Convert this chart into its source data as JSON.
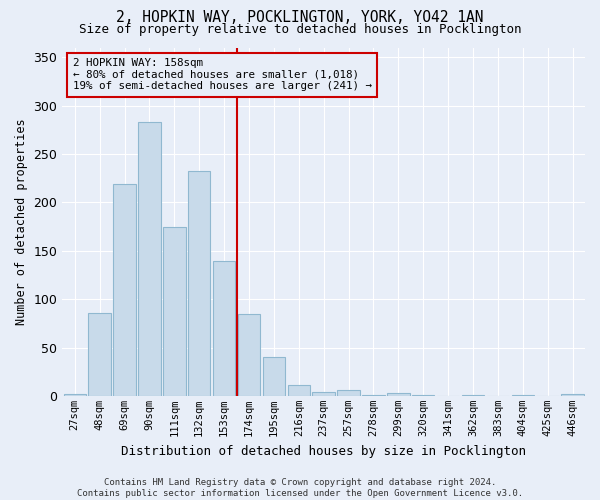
{
  "title": "2, HOPKIN WAY, POCKLINGTON, YORK, YO42 1AN",
  "subtitle": "Size of property relative to detached houses in Pocklington",
  "xlabel": "Distribution of detached houses by size in Pocklington",
  "ylabel": "Number of detached properties",
  "bar_color": "#c8daea",
  "bar_edge_color": "#90b8d0",
  "background_color": "#e8eef8",
  "grid_color": "#ffffff",
  "categories": [
    "27sqm",
    "48sqm",
    "69sqm",
    "90sqm",
    "111sqm",
    "132sqm",
    "153sqm",
    "174sqm",
    "195sqm",
    "216sqm",
    "237sqm",
    "257sqm",
    "278sqm",
    "299sqm",
    "320sqm",
    "341sqm",
    "362sqm",
    "383sqm",
    "404sqm",
    "425sqm",
    "446sqm"
  ],
  "values": [
    2,
    86,
    219,
    283,
    175,
    232,
    139,
    85,
    40,
    11,
    4,
    6,
    1,
    3,
    1,
    0,
    1,
    0,
    1,
    0,
    2
  ],
  "vline_x": 6.5,
  "vline_color": "#cc0000",
  "annotation_text_line1": "2 HOPKIN WAY: 158sqm",
  "annotation_text_line2": "← 80% of detached houses are smaller (1,018)",
  "annotation_text_line3": "19% of semi-detached houses are larger (241) →",
  "ylim": [
    0,
    360
  ],
  "yticks": [
    0,
    50,
    100,
    150,
    200,
    250,
    300,
    350
  ],
  "footer_line1": "Contains HM Land Registry data © Crown copyright and database right 2024.",
  "footer_line2": "Contains public sector information licensed under the Open Government Licence v3.0."
}
